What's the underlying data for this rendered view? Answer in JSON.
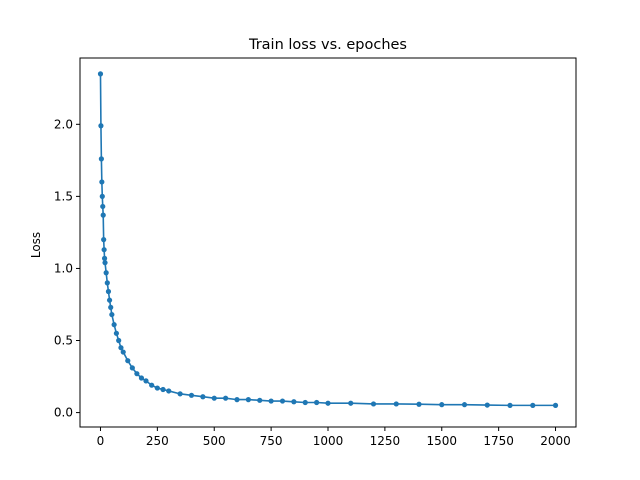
{
  "chart_data": {
    "type": "line",
    "title": "Train loss vs. epoches",
    "xlabel": "",
    "ylabel": "Loss",
    "xlim": [
      -90,
      2090
    ],
    "ylim": [
      -0.1,
      2.46
    ],
    "xticks": [
      0,
      250,
      500,
      750,
      1000,
      1250,
      1500,
      1750,
      2000
    ],
    "xtick_labels": [
      "0",
      "250",
      "500",
      "750",
      "1000",
      "1250",
      "1500",
      "1750",
      "2000"
    ],
    "yticks": [
      0.0,
      0.5,
      1.0,
      1.5,
      2.0
    ],
    "ytick_labels": [
      "0.0",
      "0.5",
      "1.0",
      "1.5",
      "2.0"
    ],
    "grid": false,
    "marker": "circle",
    "series": [
      {
        "color": "#1f77b4",
        "x": [
          0,
          2,
          4,
          6,
          8,
          10,
          12,
          14,
          16,
          18,
          20,
          25,
          30,
          35,
          40,
          45,
          50,
          60,
          70,
          80,
          90,
          100,
          120,
          140,
          160,
          180,
          200,
          225,
          250,
          275,
          300,
          350,
          400,
          450,
          500,
          550,
          600,
          650,
          700,
          750,
          800,
          850,
          900,
          950,
          1000,
          1100,
          1200,
          1300,
          1400,
          1500,
          1600,
          1700,
          1800,
          1900,
          2000
        ],
        "values": [
          2.35,
          1.99,
          1.76,
          1.6,
          1.5,
          1.43,
          1.37,
          1.2,
          1.13,
          1.07,
          1.04,
          0.97,
          0.9,
          0.84,
          0.78,
          0.73,
          0.68,
          0.61,
          0.55,
          0.5,
          0.45,
          0.42,
          0.36,
          0.31,
          0.27,
          0.24,
          0.22,
          0.19,
          0.17,
          0.16,
          0.15,
          0.13,
          0.12,
          0.11,
          0.1,
          0.1,
          0.09,
          0.09,
          0.085,
          0.08,
          0.08,
          0.075,
          0.07,
          0.07,
          0.065,
          0.065,
          0.06,
          0.06,
          0.058,
          0.055,
          0.055,
          0.052,
          0.05,
          0.05,
          0.05
        ]
      }
    ]
  }
}
